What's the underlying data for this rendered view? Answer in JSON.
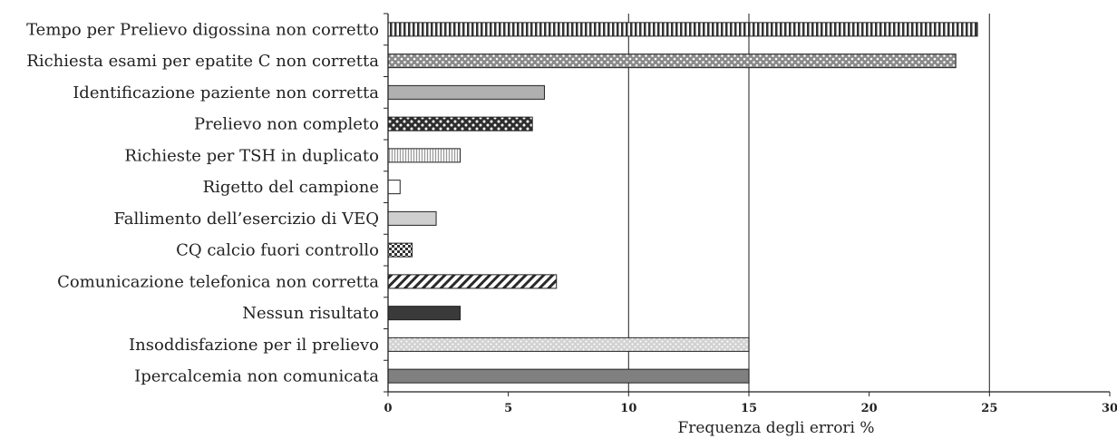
{
  "chart_data": {
    "type": "bar",
    "orientation": "horizontal",
    "categories": [
      "Tempo per Prelievo digossina non corretto",
      "Richiesta esami per epatite C non corretta",
      "Identificazione paziente non corretta",
      "Prelievo non completo",
      "Richieste per TSH in duplicato",
      "Rigetto del campione",
      "Fallimento dell’esercizio di VEQ",
      "CQ calcio fuori controllo",
      "Comunicazione telefonica non corretta",
      "Nessun risultato",
      "Insoddisfazione per il prelievo",
      "Ipercalcemia non comunicata"
    ],
    "values": [
      24.5,
      23.6,
      6.5,
      6.0,
      3.0,
      0.5,
      2.0,
      1.0,
      7.0,
      3.0,
      15.0,
      15.0
    ],
    "patterns": [
      "vstripes",
      "lightdots",
      "solid-lightgray",
      "darkdots",
      "fine-vstripes",
      "white",
      "solid-lighter",
      "checker",
      "diagonal",
      "solid-dark",
      "light-speckle",
      "solid-gray"
    ],
    "xlabel": "Frequenza degli errori %",
    "ylabel": "",
    "title": "",
    "xlim": [
      0,
      30
    ],
    "xticks": [
      "0",
      "5",
      "10",
      "15",
      "20",
      "25",
      "30"
    ],
    "reference_lines": [
      10,
      15,
      25
    ],
    "grid": false,
    "colors": {
      "dark": "#3a3a3a",
      "gray": "#808080",
      "light": "#b0b0b0",
      "lighter": "#cfcfcf",
      "line": "#444444"
    }
  }
}
